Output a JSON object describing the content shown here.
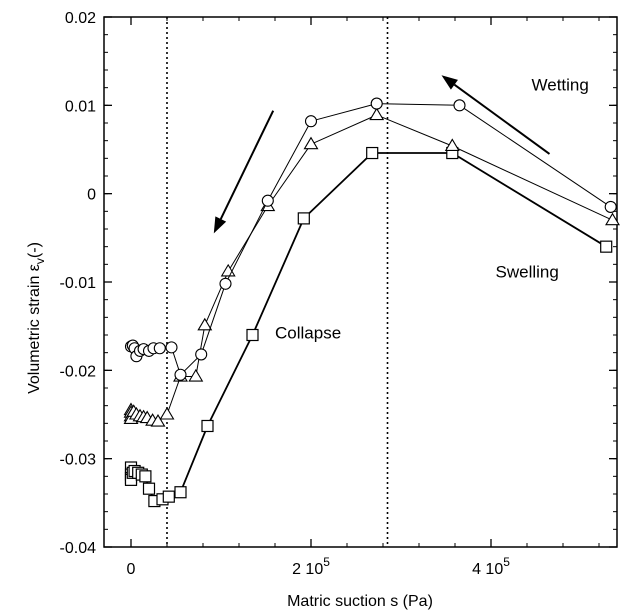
{
  "chart_data": {
    "type": "line",
    "title": "",
    "xlabel": "Matric suction s (Pa)",
    "ylabel_main": "Volumetric strain ε",
    "ylabel_sub": "v",
    "ylabel_tail": "(-)",
    "xlim": [
      -30000,
      540000
    ],
    "ylim": [
      -0.04,
      0.02
    ],
    "x_ticks": [
      {
        "value": 0,
        "label": "0",
        "sup": ""
      },
      {
        "value": 200000,
        "label": "2 10",
        "sup": "5"
      },
      {
        "value": 400000,
        "label": "4 10",
        "sup": "5"
      }
    ],
    "y_ticks": [
      {
        "value": 0.02,
        "label": "0.02"
      },
      {
        "value": 0.01,
        "label": "0.01"
      },
      {
        "value": 0,
        "label": "0"
      },
      {
        "value": -0.01,
        "label": "-0.01"
      },
      {
        "value": -0.02,
        "label": "-0.02"
      },
      {
        "value": -0.03,
        "label": "-0.03"
      },
      {
        "value": -0.04,
        "label": "-0.04"
      }
    ],
    "grid": false,
    "vertical_lines": [
      40000,
      285000
    ],
    "annotations": [
      {
        "text": "Wetting",
        "x": 445000,
        "y": 0.0117
      },
      {
        "text": "Swelling",
        "x": 405000,
        "y": -0.0095
      },
      {
        "text": "Collapse",
        "x": 160000,
        "y": -0.0164
      }
    ],
    "arrows": [
      {
        "from": [
          158000,
          0.0094
        ],
        "to": [
          92000,
          -0.0045
        ]
      },
      {
        "from": [
          465000,
          0.0045
        ],
        "to": [
          345000,
          0.0134
        ]
      }
    ],
    "series": [
      {
        "marker": "square",
        "stroke_width": 1.8,
        "marker_size": 11,
        "points": [
          [
            0,
            -0.031
          ],
          [
            0,
            -0.0318
          ],
          [
            0,
            -0.0322
          ],
          [
            0,
            -0.0324
          ],
          [
            2000,
            -0.0316
          ],
          [
            4000,
            -0.0314
          ],
          [
            8000,
            -0.0316
          ],
          [
            12000,
            -0.0318
          ],
          [
            16000,
            -0.032
          ],
          [
            20000,
            -0.0334
          ],
          [
            26000,
            -0.0348
          ],
          [
            35000,
            -0.0346
          ],
          [
            42000,
            -0.0343
          ],
          [
            55000,
            -0.0338
          ],
          [
            85000,
            -0.0263
          ],
          [
            135000,
            -0.016
          ],
          [
            192000,
            -0.0028
          ],
          [
            268000,
            0.0046
          ],
          [
            357000,
            0.0046
          ],
          [
            528000,
            -0.006
          ]
        ]
      },
      {
        "marker": "triangle",
        "stroke_width": 1.0,
        "marker_size": 11,
        "points": [
          [
            0,
            -0.0245
          ],
          [
            0,
            -0.0248
          ],
          [
            0,
            -0.0252
          ],
          [
            0,
            -0.0255
          ],
          [
            3000,
            -0.0247
          ],
          [
            6000,
            -0.025
          ],
          [
            10000,
            -0.0252
          ],
          [
            14000,
            -0.0253
          ],
          [
            18000,
            -0.0254
          ],
          [
            24000,
            -0.0257
          ],
          [
            30000,
            -0.0258
          ],
          [
            40000,
            -0.025
          ],
          [
            55000,
            -0.0207
          ],
          [
            72000,
            -0.0207
          ],
          [
            82000,
            -0.0149
          ],
          [
            108000,
            -0.0088
          ],
          [
            152000,
            -0.0014
          ],
          [
            200000,
            0.0056
          ],
          [
            273000,
            0.0089
          ],
          [
            357000,
            0.0054
          ],
          [
            535000,
            -0.003
          ]
        ]
      },
      {
        "marker": "circle",
        "stroke_width": 1.0,
        "marker_size": 11,
        "points": [
          [
            0,
            -0.0173
          ],
          [
            2000,
            -0.0172
          ],
          [
            4000,
            -0.0175
          ],
          [
            6000,
            -0.0184
          ],
          [
            10000,
            -0.0178
          ],
          [
            14000,
            -0.0176
          ],
          [
            20000,
            -0.0178
          ],
          [
            25000,
            -0.0175
          ],
          [
            32000,
            -0.0175
          ],
          [
            45000,
            -0.0174
          ],
          [
            55000,
            -0.0205
          ],
          [
            78000,
            -0.0182
          ],
          [
            105000,
            -0.0102
          ],
          [
            152000,
            -0.0008
          ],
          [
            200000,
            0.0082
          ],
          [
            273000,
            0.0102
          ],
          [
            365000,
            0.01
          ],
          [
            533000,
            -0.0015
          ]
        ]
      }
    ]
  }
}
